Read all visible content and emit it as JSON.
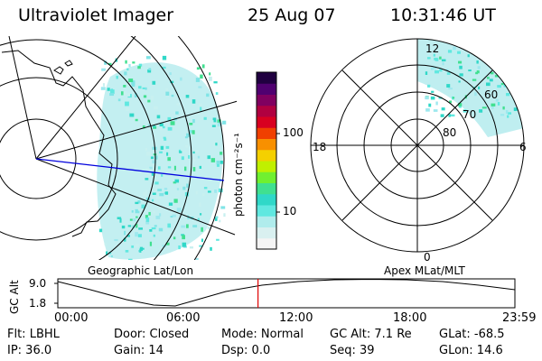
{
  "header": {
    "instrument": "Ultraviolet Imager",
    "date": "25 Aug 07",
    "time": "10:31:46 UT"
  },
  "panels": {
    "geographic_label": "Geographic Lat/Lon",
    "apex_label": "Apex  MLat/MLT",
    "polar_mlt_labels": [
      "12",
      "18",
      "6",
      "0"
    ],
    "polar_mlat_labels": [
      "60",
      "70",
      "80"
    ]
  },
  "colorbar": {
    "unit_label": "photon cm⁻²s⁻¹",
    "tick_labels": [
      "100",
      "10"
    ],
    "colors": [
      "#f4f4f4",
      "#d9f0f0",
      "#b0ecec",
      "#60e8e0",
      "#30d8c8",
      "#40e090",
      "#70f030",
      "#c0f000",
      "#f4d000",
      "#f89000",
      "#f04000",
      "#d80020",
      "#b00040",
      "#800060",
      "#500070",
      "#200040"
    ]
  },
  "orbit_plot": {
    "axis_label": "GC Alt",
    "y_ticks": [
      "9.0",
      "1.8"
    ],
    "x_ticks": [
      "00:00",
      "06:00",
      "12:00",
      "18:00",
      "23:59"
    ],
    "current_time_marker_fraction": 0.438
  },
  "status": {
    "flt": "Flt: LBHL",
    "ip": "IP: 36.0",
    "door": "Door: Closed",
    "gain": "Gain: 14",
    "mode": "Mode: Normal",
    "dsp": "Dsp:     0.0",
    "gc_alt": "GC Alt: 7.1 Re",
    "seq": "Seq: 39",
    "glat": "GLat: -68.5",
    "glon": "GLon:  14.6"
  }
}
